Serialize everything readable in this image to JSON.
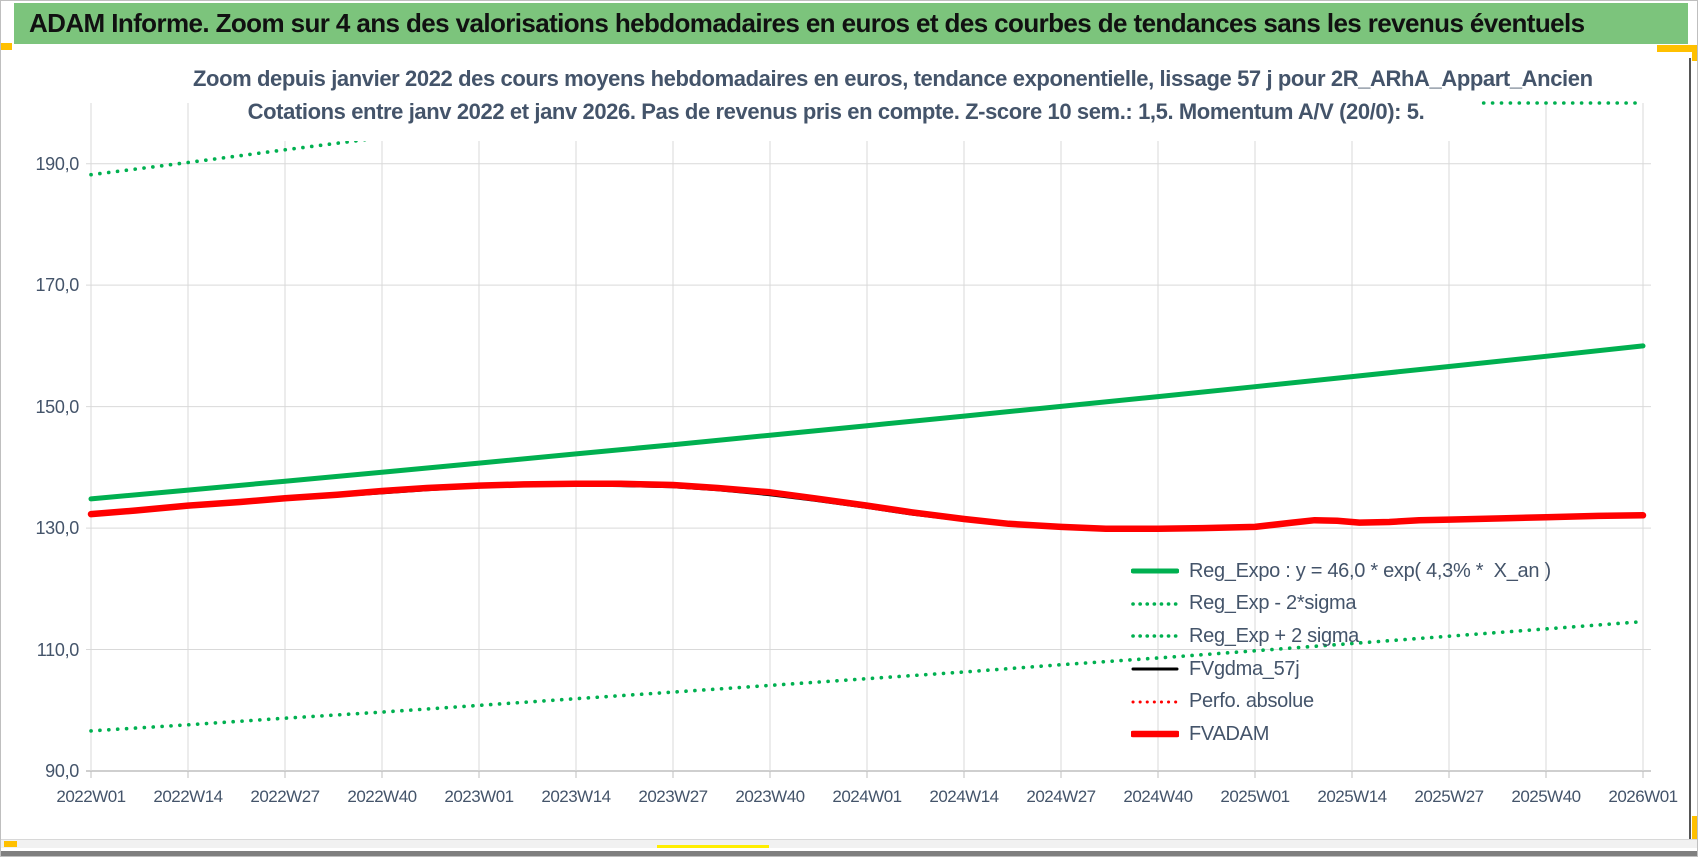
{
  "banner": {
    "text": "ADAM Informe. Zoom sur 4 ans des valorisations hebdomadaires en euros et des courbes de tendances sans les revenus éventuels",
    "bg_color": "#7CC47C"
  },
  "chart_data": {
    "type": "line",
    "title_line1": "Zoom depuis janvier 2022 des cours moyens hebdomadaires en euros, tendance exponentielle, lissage 57 j pour 2R_ARhA_Appart_Ancien",
    "title_line2": "Cotations entre janv 2022 et janv 2026. Pas de revenus pris en compte. Z-score 10 sem.: 1,5. Momentum A/V (20/0): 5.",
    "x_tick_labels": [
      "2022W01",
      "2022W14",
      "2022W27",
      "2022W40",
      "2023W01",
      "2023W14",
      "2023W27",
      "2023W40",
      "2024W01",
      "2024W14",
      "2024W27",
      "2024W40",
      "2025W01",
      "2025W14",
      "2025W27",
      "2025W40",
      "2026W01"
    ],
    "y_tick_labels": [
      "90,0",
      "110,0",
      "130,0",
      "150,0",
      "170,0",
      "190,0"
    ],
    "y_tick_values": [
      90,
      110,
      130,
      150,
      170,
      190
    ],
    "x_axis_unit": "weeks since 2022W01",
    "x_range_weeks": [
      0,
      208
    ],
    "y_range": [
      90,
      200
    ],
    "grid": true,
    "legend_position": "inside-right",
    "colors": {
      "green": "#00B050",
      "red": "#FF0000",
      "black": "#000000",
      "grid": "#D9D9D9",
      "axis": "#BFBFBF",
      "text": "#44546A"
    },
    "series": [
      {
        "name": "Reg_Expo : y = 46,0 * exp( 4,3% *  X_an )",
        "color": "#00B050",
        "style": "solid",
        "width": 5,
        "points": [
          [
            0,
            134.8
          ],
          [
            13,
            136.25
          ],
          [
            26,
            137.72
          ],
          [
            39,
            139.2
          ],
          [
            52,
            140.7
          ],
          [
            65,
            142.21
          ],
          [
            78,
            143.74
          ],
          [
            91,
            145.29
          ],
          [
            104,
            146.86
          ],
          [
            117,
            148.44
          ],
          [
            130,
            150.04
          ],
          [
            143,
            151.65
          ],
          [
            156,
            153.29
          ],
          [
            169,
            154.94
          ],
          [
            182,
            156.61
          ],
          [
            195,
            158.29
          ],
          [
            208,
            160.0
          ]
        ]
      },
      {
        "name": "Reg_Exp - 2*sigma",
        "color": "#00B050",
        "style": "dotted",
        "width": 3.6,
        "points": [
          [
            0,
            96.6
          ],
          [
            13,
            97.6
          ],
          [
            26,
            98.7
          ],
          [
            39,
            99.7
          ],
          [
            52,
            100.8
          ],
          [
            65,
            101.9
          ],
          [
            78,
            103.0
          ],
          [
            91,
            104.1
          ],
          [
            104,
            105.2
          ],
          [
            117,
            106.3
          ],
          [
            130,
            107.5
          ],
          [
            143,
            108.6
          ],
          [
            156,
            109.8
          ],
          [
            169,
            111.0
          ],
          [
            182,
            112.2
          ],
          [
            195,
            113.4
          ],
          [
            208,
            114.6
          ]
        ]
      },
      {
        "name": "Reg_Exp + 2 sigma",
        "color": "#00B050",
        "style": "dotted",
        "width": 3.6,
        "clamped_at_axis_max": 200,
        "points": [
          [
            0,
            188.2
          ],
          [
            13,
            190.2
          ],
          [
            26,
            192.3
          ],
          [
            39,
            194.3
          ],
          [
            52,
            196.4
          ],
          [
            65,
            198.5
          ],
          [
            74,
            200.0
          ],
          [
            120,
            200.0
          ],
          [
            160,
            200.0
          ],
          [
            208,
            200.0
          ]
        ]
      },
      {
        "name": "FVgdma_57j",
        "color": "#000000",
        "style": "solid",
        "width": 3,
        "points": [
          [
            0,
            132.3
          ],
          [
            6,
            132.8
          ],
          [
            13,
            133.5
          ],
          [
            20,
            134.1
          ],
          [
            26,
            134.7
          ],
          [
            33,
            135.3
          ],
          [
            39,
            135.8
          ],
          [
            45,
            136.3
          ],
          [
            52,
            136.8
          ],
          [
            58,
            137.0
          ],
          [
            65,
            137.1
          ],
          [
            71,
            137.0
          ],
          [
            78,
            136.8
          ],
          [
            84,
            136.3
          ],
          [
            91,
            135.5
          ],
          [
            97,
            134.6
          ],
          [
            104,
            133.4
          ],
          [
            110,
            132.3
          ],
          [
            117,
            131.3
          ],
          [
            123,
            130.5
          ],
          [
            130,
            130.1
          ],
          [
            136,
            129.9
          ],
          [
            143,
            130.0
          ],
          [
            149,
            130.2
          ],
          [
            156,
            130.4
          ],
          [
            161,
            131.0
          ],
          [
            164,
            131.3
          ],
          [
            167,
            131.3
          ],
          [
            170,
            131.1
          ],
          [
            174,
            131.2
          ],
          [
            178,
            131.4
          ],
          [
            182,
            131.5
          ],
          [
            189,
            131.7
          ],
          [
            195,
            131.9
          ],
          [
            202,
            132.1
          ],
          [
            208,
            132.2
          ]
        ]
      },
      {
        "name": "Perfo. absolue",
        "color": "#FF0000",
        "style": "dotted",
        "width": 3,
        "points": [
          [
            0,
            132.3
          ],
          [
            6,
            132.9
          ],
          [
            13,
            133.7
          ],
          [
            20,
            134.3
          ],
          [
            26,
            134.9
          ],
          [
            33,
            135.5
          ],
          [
            39,
            136.1
          ],
          [
            45,
            136.6
          ],
          [
            52,
            137.0
          ],
          [
            58,
            137.2
          ],
          [
            65,
            137.3
          ],
          [
            71,
            137.3
          ],
          [
            78,
            137.1
          ],
          [
            84,
            136.6
          ],
          [
            91,
            135.9
          ],
          [
            97,
            134.9
          ],
          [
            104,
            133.7
          ],
          [
            110,
            132.6
          ],
          [
            117,
            131.5
          ],
          [
            123,
            130.7
          ],
          [
            130,
            130.2
          ],
          [
            136,
            129.9
          ],
          [
            143,
            129.9
          ],
          [
            149,
            130.0
          ],
          [
            156,
            130.2
          ],
          [
            161,
            130.9
          ],
          [
            164,
            131.3
          ],
          [
            167,
            131.2
          ],
          [
            170,
            130.9
          ],
          [
            174,
            131.0
          ],
          [
            178,
            131.3
          ],
          [
            182,
            131.4
          ],
          [
            189,
            131.6
          ],
          [
            195,
            131.8
          ],
          [
            202,
            132.0
          ],
          [
            208,
            132.1
          ]
        ]
      },
      {
        "name": "FVADAM",
        "color": "#FF0000",
        "style": "solid",
        "width": 6.5,
        "points": [
          [
            0,
            132.3
          ],
          [
            6,
            132.9
          ],
          [
            13,
            133.7
          ],
          [
            20,
            134.3
          ],
          [
            26,
            134.9
          ],
          [
            33,
            135.5
          ],
          [
            39,
            136.1
          ],
          [
            45,
            136.6
          ],
          [
            52,
            137.0
          ],
          [
            58,
            137.2
          ],
          [
            65,
            137.3
          ],
          [
            71,
            137.3
          ],
          [
            78,
            137.1
          ],
          [
            84,
            136.6
          ],
          [
            91,
            135.9
          ],
          [
            97,
            134.9
          ],
          [
            104,
            133.7
          ],
          [
            110,
            132.6
          ],
          [
            117,
            131.5
          ],
          [
            123,
            130.7
          ],
          [
            130,
            130.2
          ],
          [
            136,
            129.9
          ],
          [
            143,
            129.9
          ],
          [
            149,
            130.0
          ],
          [
            156,
            130.2
          ],
          [
            161,
            130.9
          ],
          [
            164,
            131.3
          ],
          [
            167,
            131.2
          ],
          [
            170,
            130.9
          ],
          [
            174,
            131.0
          ],
          [
            178,
            131.3
          ],
          [
            182,
            131.4
          ],
          [
            189,
            131.6
          ],
          [
            195,
            131.8
          ],
          [
            202,
            132.0
          ],
          [
            208,
            132.1
          ]
        ]
      }
    ]
  }
}
